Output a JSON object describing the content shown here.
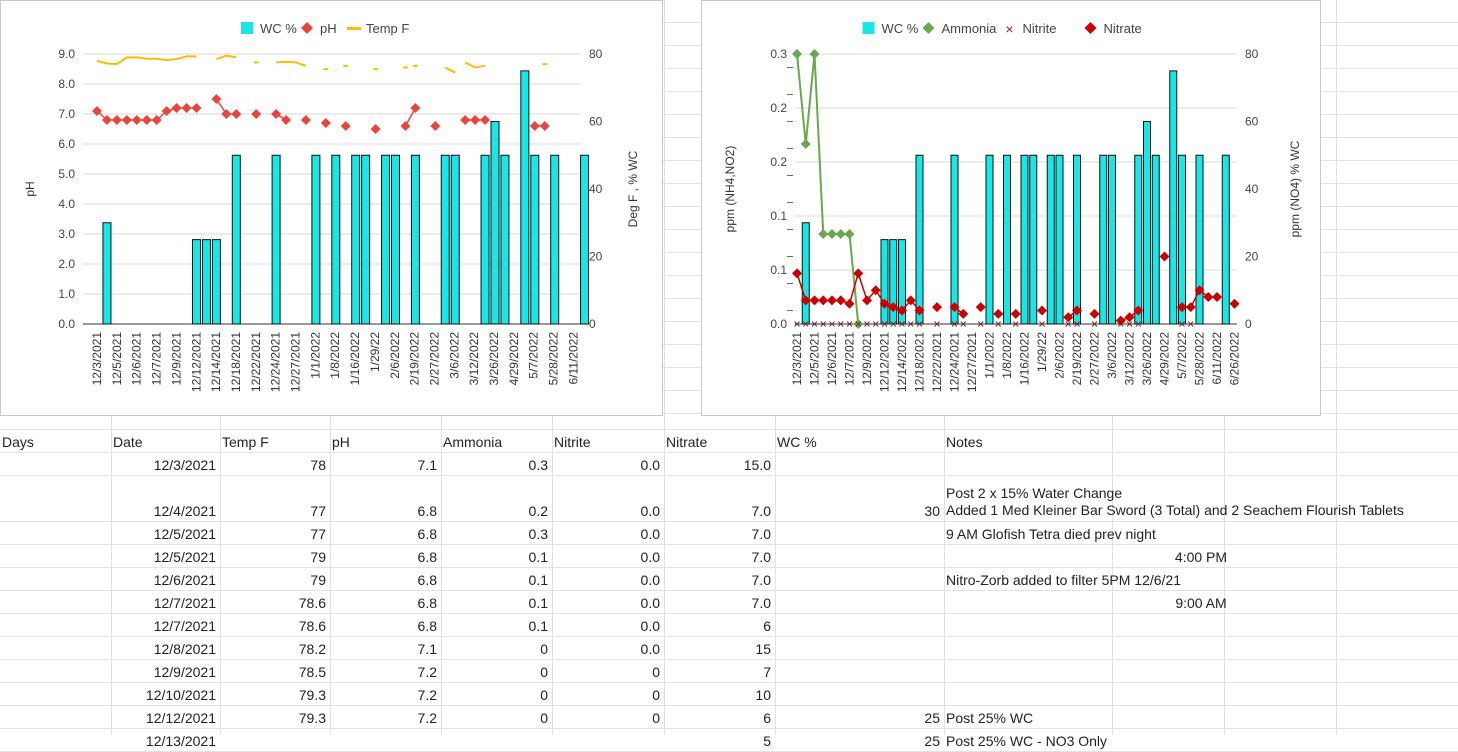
{
  "chart_data": [
    {
      "type": "bar",
      "legend": [
        "WC %",
        "pH",
        "Temp F"
      ],
      "colors": {
        "wc": "#19e6e6",
        "ph": "#e8463c",
        "temp": "#fbbc04"
      },
      "x_tick_labels": [
        "12/3/2021",
        "12/5/2021",
        "12/6/2021",
        "12/7/2021",
        "12/9/2021",
        "12/12/2021",
        "12/14/2021",
        "12/18/2021",
        "12/22/2021",
        "12/24/2021",
        "12/27/2021",
        "1/1/2022",
        "1/8/2022",
        "1/16/2022",
        "1/29/22",
        "2/6/2022",
        "2/19/2022",
        "2/27/2022",
        "3/6/2022",
        "3/12/2022",
        "3/26/2022",
        "4/29/2022",
        "5/7/2022",
        "5/28/2022",
        "6/11/2022"
      ],
      "y_left_ticks": [
        "9.0",
        "8.0",
        "7.0",
        "6.0",
        "5.0",
        "4.0",
        "3.0",
        "2.0",
        "1.0",
        "0.0"
      ],
      "y_right_ticks": [
        "80",
        "60",
        "40",
        "20",
        "0"
      ],
      "ylabel_left": "pH",
      "ylabel_right": "Deg F , % WC",
      "ylim_left": [
        0,
        9
      ],
      "ylim_right": [
        0,
        80
      ],
      "wc_bars": [
        [
          1,
          30
        ],
        [
          10,
          25
        ],
        [
          11,
          25
        ],
        [
          12,
          25
        ],
        [
          14,
          50
        ],
        [
          18,
          50
        ],
        [
          22,
          50
        ],
        [
          24,
          50
        ],
        [
          26,
          50
        ],
        [
          27,
          50
        ],
        [
          29,
          50
        ],
        [
          30,
          50
        ],
        [
          32,
          50
        ],
        [
          35,
          50
        ],
        [
          36,
          50
        ],
        [
          39,
          50
        ],
        [
          40,
          60
        ],
        [
          41,
          50
        ],
        [
          43,
          75
        ],
        [
          44,
          50
        ],
        [
          46,
          50
        ],
        [
          49,
          50
        ]
      ],
      "ph_points": [
        [
          0,
          7.1
        ],
        [
          1,
          6.8
        ],
        [
          2,
          6.8
        ],
        [
          3,
          6.8
        ],
        [
          4,
          6.8
        ],
        [
          5,
          6.8
        ],
        [
          6,
          6.8
        ],
        [
          7,
          7.1
        ],
        [
          8,
          7.2
        ],
        [
          9,
          7.2
        ],
        [
          10,
          7.2
        ],
        [
          12,
          7.5
        ],
        [
          13,
          7.0
        ],
        [
          14,
          7.0
        ],
        [
          16,
          7.0
        ],
        [
          18,
          7.0
        ],
        [
          19,
          6.8
        ],
        [
          21,
          6.8
        ],
        [
          23,
          6.7
        ],
        [
          25,
          6.6
        ],
        [
          28,
          6.5
        ],
        [
          31,
          6.6
        ],
        [
          32,
          7.2
        ],
        [
          34,
          6.6
        ],
        [
          37,
          6.8
        ],
        [
          38,
          6.8
        ],
        [
          39,
          6.8
        ],
        [
          44,
          6.6
        ],
        [
          45,
          6.6
        ]
      ],
      "temp_segments": [
        [
          [
            0,
            78
          ],
          [
            1,
            77.2
          ],
          [
            2,
            77
          ],
          [
            3,
            79
          ],
          [
            4,
            79
          ],
          [
            5,
            78.6
          ],
          [
            6,
            78.6
          ],
          [
            7,
            78.2
          ],
          [
            8,
            78.5
          ],
          [
            9,
            79.3
          ],
          [
            10,
            79.3
          ]
        ],
        [
          [
            12,
            78.5
          ],
          [
            13,
            79.5
          ],
          [
            14,
            79
          ]
        ],
        [
          [
            18,
            77.5
          ],
          [
            19,
            77.7
          ],
          [
            20,
            77.5
          ],
          [
            21,
            76.5
          ]
        ],
        [
          [
            35,
            76
          ],
          [
            36,
            74.5
          ]
        ],
        [
          [
            37,
            77.5
          ],
          [
            38,
            76
          ],
          [
            39,
            76.5
          ]
        ]
      ],
      "temp_dashes": [
        [
          16,
          77.5
        ],
        [
          23,
          75.5
        ],
        [
          25,
          76.5
        ],
        [
          28,
          75.5
        ],
        [
          31,
          76
        ],
        [
          32,
          76.5
        ],
        [
          45,
          77
        ]
      ]
    },
    {
      "type": "bar",
      "legend": [
        "WC %",
        "Ammonia",
        "Nitrite",
        "Nitrate"
      ],
      "colors": {
        "wc": "#19e6e6",
        "ammonia": "#6aa84f",
        "nitrite": "#7b2e2e",
        "nitrate": "#cc0000"
      },
      "x_tick_labels": [
        "12/3/2021",
        "12/5/2021",
        "12/6/2021",
        "12/7/2021",
        "12/9/2021",
        "12/12/2021",
        "12/14/2021",
        "12/18/2021",
        "12/22/2021",
        "12/24/2021",
        "12/27/2021",
        "1/1/2022",
        "1/8/2022",
        "1/16/2022",
        "1/29/22",
        "2/6/2022",
        "2/19/2022",
        "2/27/2022",
        "3/6/2022",
        "3/12/2022",
        "3/26/2022",
        "4/29/2022",
        "5/7/2022",
        "5/28/2022",
        "6/11/2022",
        "6/26/2022"
      ],
      "y_left_ticks": [
        "0.3",
        "0.2",
        "0.2",
        "0.1",
        "0.1",
        "0.0"
      ],
      "y_right_ticks": [
        "80",
        "60",
        "40",
        "20",
        "0"
      ],
      "ylabel_left": "ppm (NH4,NO2)",
      "ylabel_right": "ppm (NO4) % WC",
      "ylim_left": [
        0,
        0.3
      ],
      "ylim_right": [
        0,
        80
      ],
      "wc_bars": [
        [
          1,
          30
        ],
        [
          10,
          25
        ],
        [
          11,
          25
        ],
        [
          12,
          25
        ],
        [
          14,
          50
        ],
        [
          18,
          50
        ],
        [
          22,
          50
        ],
        [
          24,
          50
        ],
        [
          26,
          50
        ],
        [
          27,
          50
        ],
        [
          29,
          50
        ],
        [
          30,
          50
        ],
        [
          32,
          50
        ],
        [
          35,
          50
        ],
        [
          36,
          50
        ],
        [
          39,
          50
        ],
        [
          40,
          60
        ],
        [
          41,
          50
        ],
        [
          43,
          75
        ],
        [
          44,
          50
        ],
        [
          46,
          50
        ],
        [
          49,
          50
        ]
      ],
      "ammonia_points": [
        [
          0,
          0.3
        ],
        [
          1,
          0.2
        ],
        [
          2,
          0.3
        ],
        [
          3,
          0.1
        ],
        [
          4,
          0.1
        ],
        [
          5,
          0.1
        ],
        [
          6,
          0.1
        ],
        [
          7,
          0
        ]
      ],
      "nitrite_points": [
        [
          0,
          0
        ],
        [
          1,
          0
        ],
        [
          2,
          0
        ],
        [
          3,
          0
        ],
        [
          4,
          0
        ],
        [
          5,
          0
        ],
        [
          6,
          0
        ],
        [
          7,
          0
        ],
        [
          8,
          0
        ],
        [
          9,
          0
        ],
        [
          10,
          0
        ],
        [
          11,
          0
        ],
        [
          12,
          0
        ],
        [
          13,
          0
        ],
        [
          14,
          0
        ],
        [
          16,
          0
        ],
        [
          18,
          0
        ],
        [
          19,
          0
        ],
        [
          21,
          0
        ],
        [
          23,
          0
        ],
        [
          25,
          0
        ],
        [
          28,
          0
        ],
        [
          31,
          0
        ],
        [
          32,
          0
        ],
        [
          34,
          0
        ],
        [
          37,
          0
        ],
        [
          38,
          0
        ],
        [
          39,
          0
        ],
        [
          44,
          0
        ],
        [
          45,
          0
        ]
      ],
      "nitrate_points": [
        [
          0,
          15
        ],
        [
          1,
          7
        ],
        [
          2,
          7
        ],
        [
          3,
          7
        ],
        [
          4,
          7
        ],
        [
          5,
          7
        ],
        [
          6,
          6
        ],
        [
          7,
          15
        ],
        [
          8,
          7
        ],
        [
          9,
          10
        ],
        [
          10,
          6
        ],
        [
          11,
          5
        ],
        [
          12,
          4
        ],
        [
          13,
          7
        ],
        [
          14,
          4
        ],
        [
          16,
          5
        ],
        [
          18,
          5
        ],
        [
          19,
          3
        ],
        [
          21,
          5
        ],
        [
          23,
          3
        ],
        [
          25,
          3
        ],
        [
          28,
          4
        ],
        [
          31,
          2
        ],
        [
          32,
          4
        ],
        [
          34,
          3
        ],
        [
          37,
          1
        ],
        [
          38,
          2
        ],
        [
          39,
          4
        ],
        [
          42,
          20
        ],
        [
          44,
          5
        ],
        [
          45,
          5
        ],
        [
          46,
          10
        ],
        [
          47,
          8
        ],
        [
          48,
          8
        ],
        [
          50,
          6
        ]
      ]
    }
  ],
  "sheet": {
    "headers": [
      "Days",
      "Date",
      "Temp F",
      "pH",
      "Ammonia",
      "Nitrite",
      "Nitrate",
      "WC %",
      "Notes"
    ],
    "rows": [
      {
        "days": "",
        "date": "12/3/2021",
        "temp": "78",
        "ph": "7.1",
        "ammonia": "0.3",
        "nitrite": "0.0",
        "nitrate": "15.0",
        "wc": "",
        "notes": ""
      },
      {
        "days": "",
        "date": "12/4/2021",
        "temp": "77",
        "ph": "6.8",
        "ammonia": "0.2",
        "nitrite": "0.0",
        "nitrate": "7.0",
        "wc": "30",
        "notes": "Post 2 x 15% Water Change\nAdded 1 Med Kleiner Bar Sword (3 Total) and 2 Seachem Flourish Tablets"
      },
      {
        "days": "",
        "date": "12/5/2021",
        "temp": "77",
        "ph": "6.8",
        "ammonia": "0.3",
        "nitrite": "0.0",
        "nitrate": "7.0",
        "wc": "",
        "notes": "9 AM Glofish Tetra died prev night"
      },
      {
        "days": "",
        "date": "12/5/2021",
        "temp": "79",
        "ph": "6.8",
        "ammonia": "0.1",
        "nitrite": "0.0",
        "nitrate": "7.0",
        "wc": "",
        "notes": "4:00 PM"
      },
      {
        "days": "",
        "date": "12/6/2021",
        "temp": "79",
        "ph": "6.8",
        "ammonia": "0.1",
        "nitrite": "0.0",
        "nitrate": "7.0",
        "wc": "",
        "notes": "Nitro-Zorb added to filter 5PM 12/6/21"
      },
      {
        "days": "",
        "date": "12/7/2021",
        "temp": "78.6",
        "ph": "6.8",
        "ammonia": "0.1",
        "nitrite": "0.0",
        "nitrate": "7.0",
        "wc": "",
        "notes": "9:00 AM"
      },
      {
        "days": "",
        "date": "12/7/2021",
        "temp": "78.6",
        "ph": "6.8",
        "ammonia": "0.1",
        "nitrite": "0.0",
        "nitrate": "6",
        "wc": "",
        "notes": ""
      },
      {
        "days": "",
        "date": "12/8/2021",
        "temp": "78.2",
        "ph": "7.1",
        "ammonia": "0",
        "nitrite": "0.0",
        "nitrate": "15",
        "wc": "",
        "notes": ""
      },
      {
        "days": "",
        "date": "12/9/2021",
        "temp": "78.5",
        "ph": "7.2",
        "ammonia": "0",
        "nitrite": "0",
        "nitrate": "7",
        "wc": "",
        "notes": ""
      },
      {
        "days": "",
        "date": "12/10/2021",
        "temp": "79.3",
        "ph": "7.2",
        "ammonia": "0",
        "nitrite": "0",
        "nitrate": "10",
        "wc": "",
        "notes": ""
      },
      {
        "days": "",
        "date": "12/12/2021",
        "temp": "79.3",
        "ph": "7.2",
        "ammonia": "0",
        "nitrite": "0",
        "nitrate": "6",
        "wc": "25",
        "notes": "Post 25% WC"
      },
      {
        "days": "",
        "date": "12/13/2021",
        "temp": "",
        "ph": "",
        "ammonia": "",
        "nitrite": "",
        "nitrate": "5",
        "wc": "25",
        "notes": "Post 25% WC - NO3 Only"
      }
    ]
  }
}
